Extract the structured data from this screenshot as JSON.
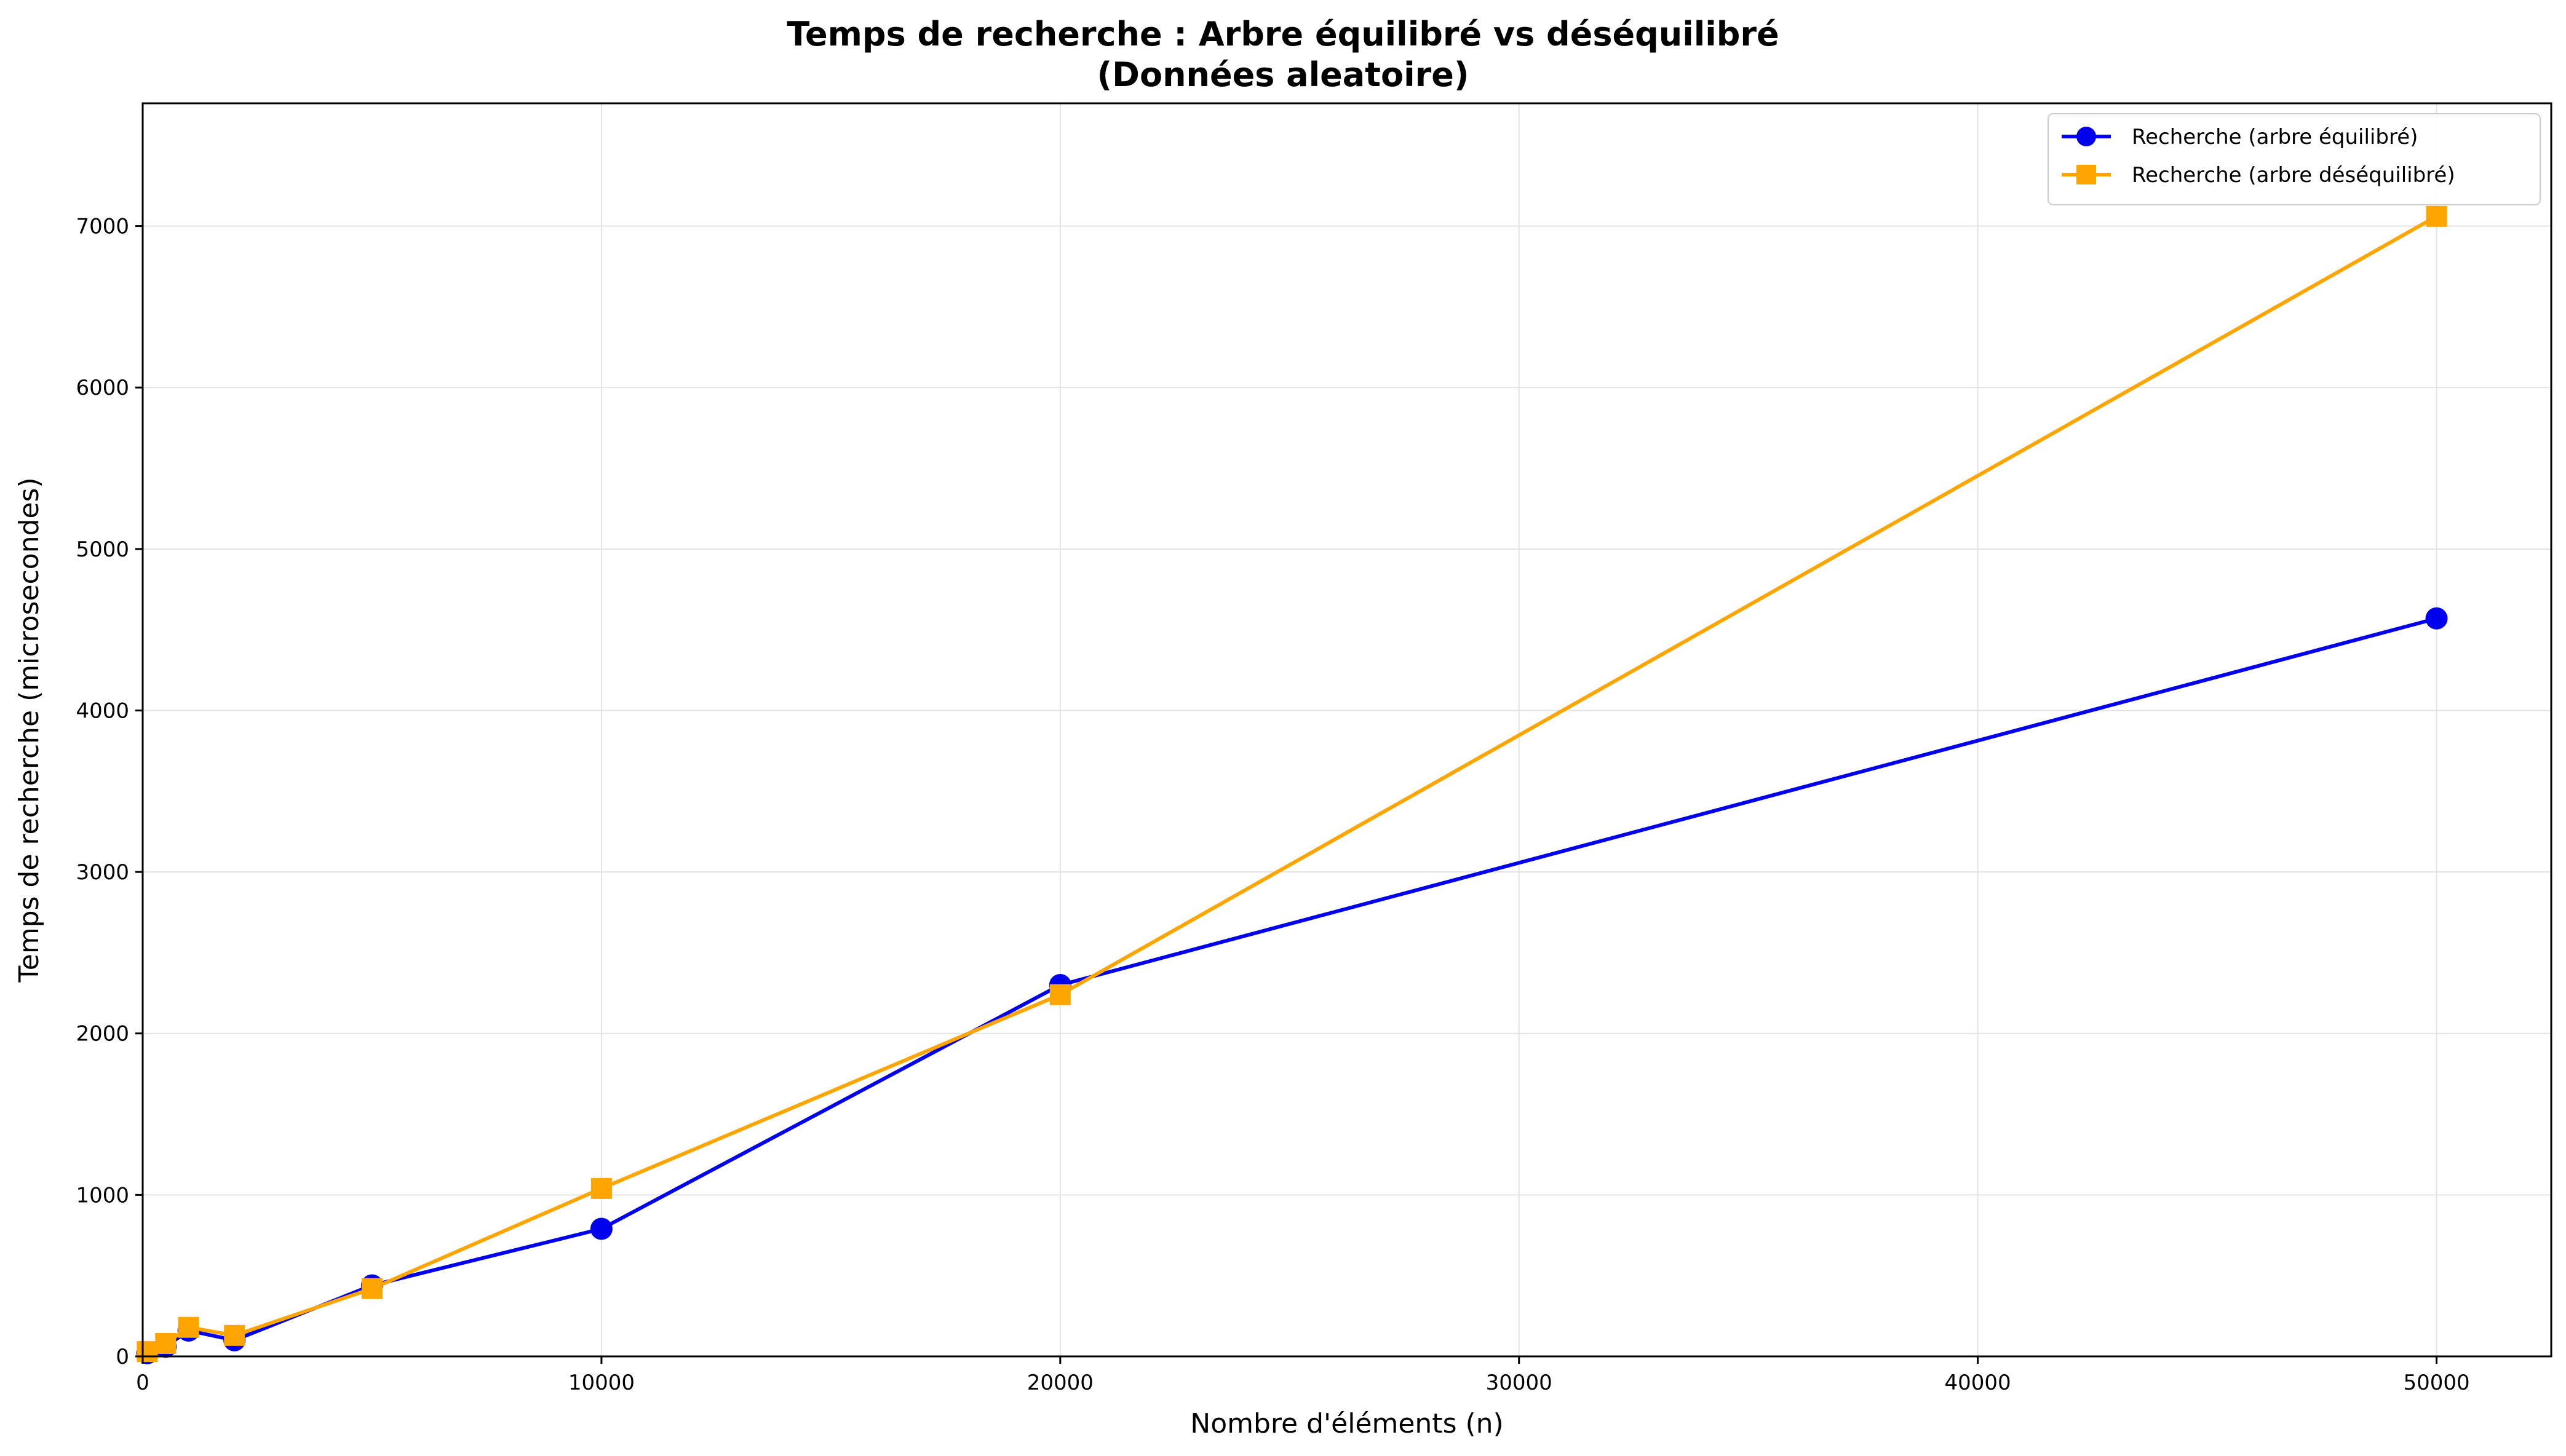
{
  "chart_data": {
    "type": "line",
    "title": "Temps de recherche : Arbre équilibré vs déséquilibré",
    "subtitle": "(Données aleatoire)",
    "xlabel": "Nombre d'éléments (n)",
    "ylabel": "Temps de recherche (microsecondes)",
    "xlim": [
      0,
      52500
    ],
    "ylim": [
      0,
      7760
    ],
    "xticks": [
      0,
      10000,
      20000,
      30000,
      40000,
      50000
    ],
    "yticks": [
      0,
      1000,
      2000,
      3000,
      4000,
      5000,
      6000,
      7000
    ],
    "grid": true,
    "legend_position": "top-right",
    "series": [
      {
        "name": "Recherche (arbre équilibré)",
        "color": "#0000ee",
        "marker": "circle",
        "x": [
          100,
          500,
          1000,
          2000,
          5000,
          10000,
          20000,
          50000
        ],
        "y": [
          20,
          60,
          160,
          100,
          440,
          790,
          2300,
          4570
        ]
      },
      {
        "name": "Recherche (arbre déséquilibré)",
        "color": "#ffa500",
        "marker": "square",
        "x": [
          100,
          500,
          1000,
          2000,
          5000,
          10000,
          20000,
          50000
        ],
        "y": [
          30,
          80,
          180,
          130,
          420,
          1040,
          2240,
          7060
        ]
      }
    ]
  }
}
